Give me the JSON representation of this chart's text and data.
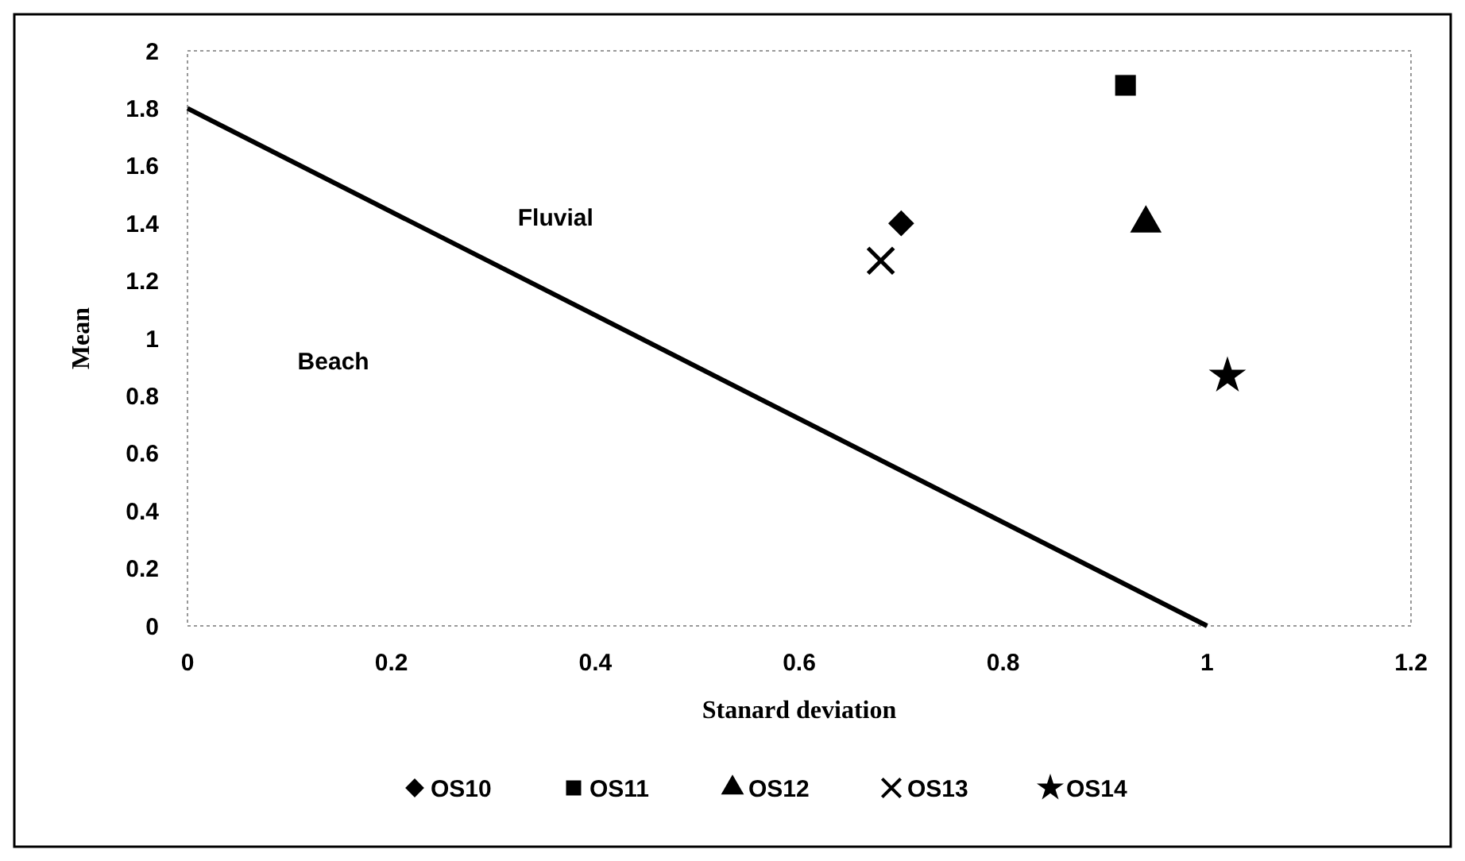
{
  "chart_data": {
    "type": "scatter",
    "xlabel": "Stanard deviation",
    "ylabel": "Mean",
    "xlim": [
      0,
      1.2
    ],
    "xticks": [
      0,
      0.2,
      0.4,
      0.6,
      0.8,
      1,
      1.2
    ],
    "ylim": [
      0,
      2
    ],
    "yticks": [
      0,
      0.2,
      0.4,
      0.6,
      0.8,
      1,
      1.2,
      1.4,
      1.6,
      1.8,
      2
    ],
    "grid": false,
    "legend": "bottom",
    "annotations": [
      "Fluvial",
      "Beach"
    ],
    "series": [
      {
        "type": "line",
        "color": "#000000",
        "x": [
          0,
          1
        ],
        "values": [
          1.8,
          0
        ],
        "marker": "none",
        "line_style": "solid"
      },
      {
        "name": "OS10",
        "color": "#000000",
        "marker": "diamond",
        "x": [
          0.7
        ],
        "values": [
          1.4
        ]
      },
      {
        "name": "OS11",
        "color": "#000000",
        "marker": "square",
        "x": [
          0.92
        ],
        "values": [
          1.88
        ]
      },
      {
        "name": "OS12",
        "color": "#000000",
        "marker": "triangle",
        "x": [
          0.94
        ],
        "values": [
          1.4
        ]
      },
      {
        "name": "OS13",
        "color": "#000000",
        "marker": "cross",
        "x": [
          0.68
        ],
        "values": [
          1.27
        ]
      },
      {
        "name": "OS14",
        "color": "#000000",
        "marker": "star",
        "x": [
          1.02
        ],
        "values": [
          0.87
        ]
      }
    ]
  }
}
